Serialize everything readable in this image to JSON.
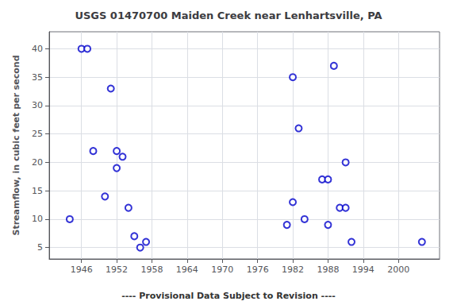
{
  "chart_data": {
    "type": "scatter",
    "title": "USGS 01470700 Maiden Creek near Lenhartsville, PA",
    "ylabel": "Streamflow, in cubic feet per second",
    "annotations": [
      "---- Provisional Data Subject to Revision ----"
    ],
    "x": [
      1944,
      1946,
      1947,
      1948,
      1950,
      1951,
      1952,
      1952,
      1953,
      1954,
      1955,
      1956,
      1957,
      1981,
      1982,
      1982,
      1983,
      1984,
      1987,
      1988,
      1988,
      1989,
      1990,
      1991,
      1991,
      1992,
      2004
    ],
    "values": [
      10,
      40,
      40,
      22,
      14,
      33,
      22,
      19,
      21,
      12,
      7,
      5,
      6,
      9,
      13,
      35,
      26,
      10,
      17,
      9,
      17,
      37,
      12,
      12,
      20,
      6,
      6
    ],
    "color": "#0000cc",
    "xlim": [
      1940.5,
      2007
    ],
    "ylim": [
      3,
      43
    ],
    "xticks": [
      1946,
      1952,
      1958,
      1964,
      1970,
      1976,
      1982,
      1988,
      1994,
      2000
    ],
    "yticks": [
      5,
      10,
      15,
      20,
      25,
      30,
      35,
      40
    ],
    "grid": true
  }
}
